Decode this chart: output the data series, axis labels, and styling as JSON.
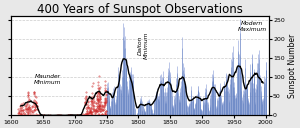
{
  "title": "400 Years of Sunspot Observations",
  "ylabel": "Sunspot Number",
  "xlim": [
    1600,
    2005
  ],
  "ylim": [
    0,
    260
  ],
  "yticks": [
    0,
    50,
    100,
    150,
    200,
    250
  ],
  "xticks": [
    1600,
    1650,
    1700,
    1750,
    1800,
    1850,
    1900,
    1950,
    2000
  ],
  "bg_color": "#e8e8e8",
  "plot_bg": "#ffffff",
  "grid_color": "#cccccc",
  "red_color": "#cc2222",
  "blue_color": "#5577bb",
  "blue_light": "#99aadd",
  "smooth_color": "#000000",
  "maunder_label": "Maunder\nMinimum",
  "dalton_label": "Dalton\nMinimum",
  "modern_label": "Modern\nMaximum",
  "maunder_x": 1657,
  "maunder_y": 108,
  "dalton_x": 1808,
  "dalton_y": 220,
  "modern_x": 1979,
  "modern_y": 248,
  "title_fontsize": 8.5,
  "annotation_fontsize": 4.2,
  "tick_fontsize": 4.5,
  "ylabel_fontsize": 5.5,
  "transition_year": 1749,
  "cycle_peaks": [
    [
      1615,
      40
    ],
    [
      1626,
      45
    ],
    [
      1637,
      55
    ],
    [
      1649,
      3
    ],
    [
      1660,
      4
    ],
    [
      1675,
      8
    ],
    [
      1685,
      2
    ],
    [
      1705,
      6
    ],
    [
      1718,
      58
    ],
    [
      1727,
      65
    ],
    [
      1738,
      95
    ],
    [
      1750,
      86
    ],
    [
      1761,
      72
    ],
    [
      1769,
      105
    ],
    [
      1778,
      230
    ],
    [
      1788,
      130
    ],
    [
      1804,
      48
    ],
    [
      1816,
      45
    ],
    [
      1829,
      71
    ],
    [
      1837,
      138
    ],
    [
      1848,
      125
    ],
    [
      1860,
      96
    ],
    [
      1870,
      139
    ],
    [
      1883,
      63
    ],
    [
      1893,
      86
    ],
    [
      1905,
      63
    ],
    [
      1917,
      104
    ],
    [
      1928,
      78
    ],
    [
      1937,
      119
    ],
    [
      1947,
      152
    ],
    [
      1958,
      201
    ],
    [
      1968,
      111
    ],
    [
      1979,
      155
    ],
    [
      1989,
      158
    ],
    [
      2000,
      120
    ]
  ]
}
